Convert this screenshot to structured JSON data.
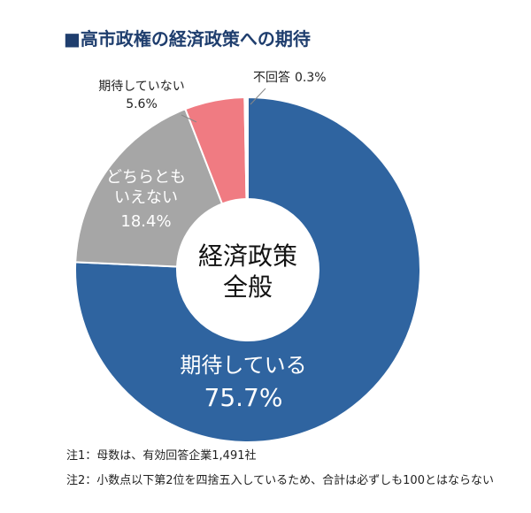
{
  "chart_data": {
    "type": "donut",
    "title": "■高市政権の経済政策への期待",
    "center_label": "経済政策\n全般",
    "categories": [
      "期待している",
      "どちらとも\nいえない",
      "期待していない",
      "不回答"
    ],
    "values": [
      75.7,
      18.4,
      5.6,
      0.3
    ],
    "value_labels": [
      "75.7%",
      "18.4%",
      "5.6%",
      "0.3%"
    ],
    "colors": [
      "#2f64a0",
      "#a6a6a6",
      "#f07b82",
      "#ffffff"
    ],
    "notes": [
      "注1：母数は、有効回答企業1,491社",
      "注2：小数点以下第2位を四捨五入しているため、合計は必ずしも100とはならない"
    ]
  }
}
